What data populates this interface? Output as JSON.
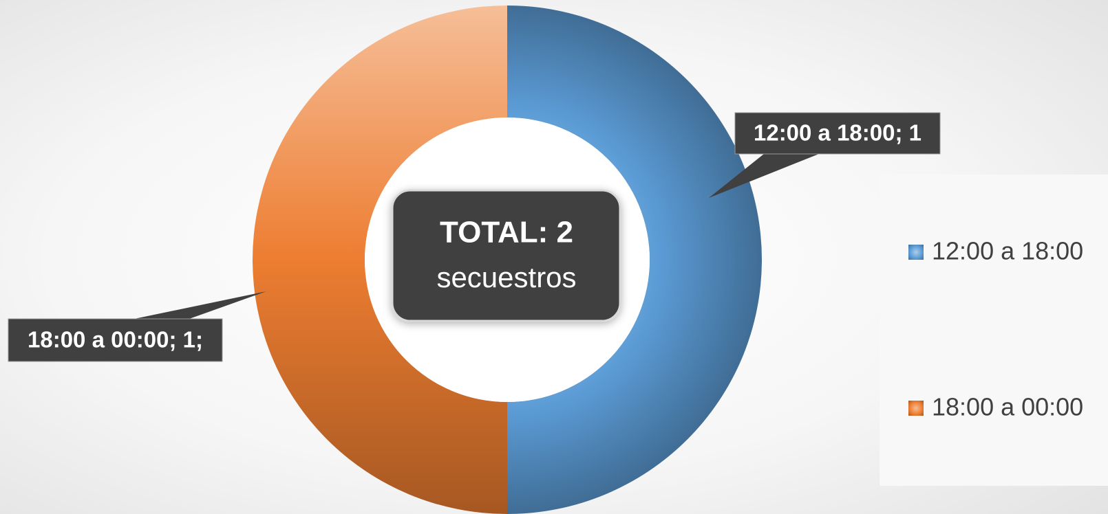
{
  "chart_data": {
    "type": "donut",
    "categories": [
      "12:00 a 18:00",
      "18:00 a 00:00"
    ],
    "values": [
      1,
      1
    ],
    "value_labels": [
      "12:00 a 18:00; 1",
      "18:00 a 00:00; 1;"
    ],
    "colors": [
      "#5b9bd5",
      "#ed7d31"
    ],
    "annotations": [
      "TOTAL: 2",
      "secuestros"
    ],
    "legend": "right"
  }
}
